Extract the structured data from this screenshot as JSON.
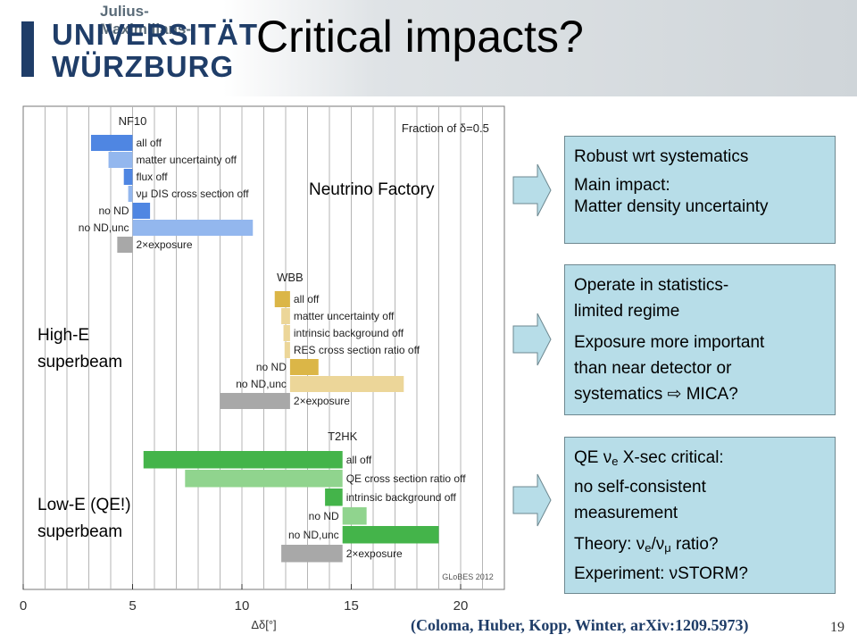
{
  "header": {
    "logo_subtitle": "Julius-Maximilians-",
    "logo_line1": "UNIVERSITÄT",
    "logo_line2": "WÜRZBURG",
    "title": "Critical impacts?"
  },
  "colors": {
    "blue_dark": "#4f86e2",
    "blue_light": "#93b7ee",
    "gold_dark": "#dbb647",
    "gold_light": "#ecd699",
    "green_dark": "#44b44a",
    "green_light": "#90d48e",
    "gray": "#a8a8a8",
    "box_fill": "#b7dde8"
  },
  "chart_data": {
    "type": "bar",
    "orientation": "horizontal",
    "title": "Fraction of δ=0.5",
    "xlabel": "Δδ[°]",
    "xlim": [
      0,
      22
    ],
    "xticks": [
      0,
      5,
      10,
      15,
      20
    ],
    "grid": "vertical every 1°",
    "watermark": "GLoBES 2012",
    "groups": [
      {
        "name": "NF10",
        "baseline": 5,
        "bars": [
          {
            "label": "all off",
            "start": 3.1,
            "end": 5,
            "shade": "dark"
          },
          {
            "label": "matter uncertainty off",
            "start": 3.9,
            "end": 5,
            "shade": "light"
          },
          {
            "label": "flux off",
            "start": 4.6,
            "end": 5,
            "shade": "dark"
          },
          {
            "label": "DIS cross section off",
            "symbol": "νμ",
            "start": 4.8,
            "end": 5,
            "shade": "light"
          },
          {
            "label": "no ND",
            "start": 5,
            "end": 5.8,
            "shade": "dark"
          },
          {
            "label": "no ND,unc",
            "start": 5,
            "end": 10.5,
            "shade": "light"
          },
          {
            "label": "2×exposure",
            "start": 4.3,
            "end": 5,
            "shade": "gray"
          }
        ]
      },
      {
        "name": "WBB",
        "baseline": 12.2,
        "bars": [
          {
            "label": "all off",
            "start": 11.5,
            "end": 12.2,
            "shade": "dark"
          },
          {
            "label": "matter uncertainty off",
            "start": 11.8,
            "end": 12.2,
            "shade": "light"
          },
          {
            "label": "intrinsic background off",
            "start": 11.9,
            "end": 12.2,
            "shade": "light"
          },
          {
            "label": "RES cross section ratio off",
            "start": 11.95,
            "end": 12.2,
            "shade": "light"
          },
          {
            "label": "no ND",
            "start": 12.2,
            "end": 13.5,
            "shade": "dark"
          },
          {
            "label": "no ND,unc",
            "start": 12.2,
            "end": 17.4,
            "shade": "light"
          },
          {
            "label": "2×exposure",
            "start": 9,
            "end": 12.2,
            "shade": "gray"
          }
        ]
      },
      {
        "name": "T2HK",
        "baseline": 14.6,
        "bars": [
          {
            "label": "all off",
            "start": 5.5,
            "end": 14.6,
            "shade": "dark"
          },
          {
            "label": "QE cross section ratio off",
            "start": 7.4,
            "end": 14.6,
            "shade": "light"
          },
          {
            "label": "intrinsic background off",
            "start": 13.8,
            "end": 14.6,
            "shade": "dark"
          },
          {
            "label": "no ND",
            "start": 14.6,
            "end": 15.7,
            "shade": "light"
          },
          {
            "label": "no ND,unc",
            "start": 14.6,
            "end": 19,
            "shade": "dark"
          },
          {
            "label": "2×exposure",
            "start": 11.8,
            "end": 14.6,
            "shade": "gray"
          }
        ]
      }
    ]
  },
  "notes": {
    "neutrino_factory": "Neutrino Factory",
    "high_e_line1": "High-E",
    "high_e_line2": "superbeam",
    "low_e_line1": "Low-E (QE!)",
    "low_e_line2": "superbeam"
  },
  "boxes": {
    "box1": {
      "p1": "Robust wrt systematics",
      "p2_line1": "Main impact:",
      "p2_line2": "Matter density uncertainty"
    },
    "box2": {
      "p1_line1": "Operate in statistics-",
      "p1_line2": "limited regime",
      "p2_line1": "Exposure more important",
      "p2_line2": "than near detector or",
      "p2_line3": "systematics",
      "p2_arrow": "⇨",
      "p2_line3_end": "MICA?"
    },
    "box3": {
      "qe_pre": "QE",
      "nu": "ν",
      "e_sub": "e",
      "mu_sub": "μ",
      "qe_post": "X-sec critical:",
      "line2": "no self-consistent",
      "line3": "measurement",
      "theory_pre": "Theory:",
      "theory_slash": "/",
      "theory_post": "ratio?",
      "exp_pre": "Experiment:",
      "exp_post": "STORM?"
    }
  },
  "footer": {
    "citation": "(Coloma, Huber, Kopp, Winter, arXiv:1209.5973)",
    "page_number": "19"
  }
}
